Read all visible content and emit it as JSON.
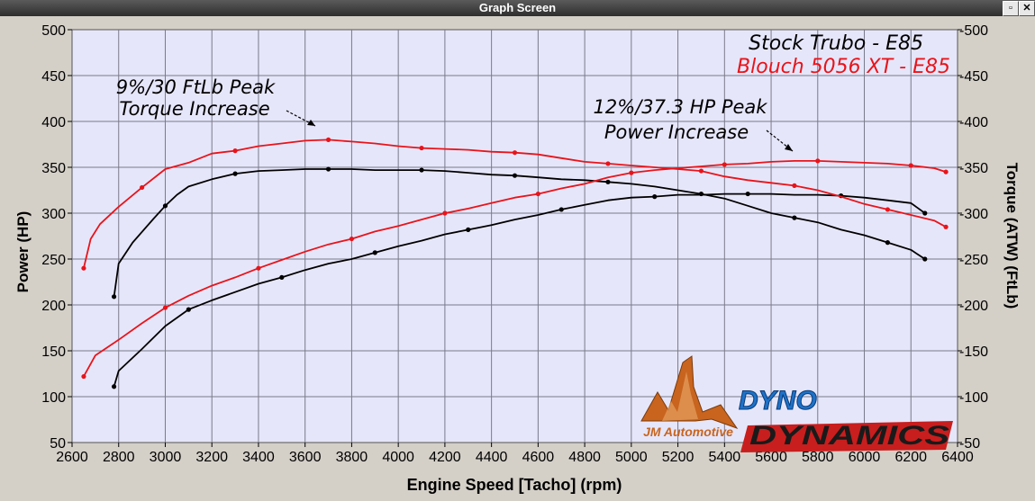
{
  "window": {
    "title": "Graph Screen",
    "restore_icon": "restore-icon",
    "close_icon": "close-icon"
  },
  "colors": {
    "plot_bg": "#e6e6fa",
    "grid": "#7a7a8c",
    "stock": "#000000",
    "upgrade": "#e8141a",
    "dyno_blue": "#1e72c8",
    "jm_orange": "#c8641e"
  },
  "annotations": {
    "torque_line1": "9%/30 FtLb Peak",
    "torque_line2": "Torque Increase",
    "power_line1": "12%/37.3 HP Peak",
    "power_line2": "Power Increase"
  },
  "logos": {
    "jm": "JM Automotive",
    "dyno1": "DYNO",
    "dyno2": "DYNAMICS"
  },
  "chart_data": {
    "type": "line",
    "xlabel": "Engine Speed [Tacho] (rpm)",
    "ylabel_left": "Power (HP)",
    "ylabel_right": "Torque (ATW) (FtLb)",
    "xlim": [
      2600,
      6400
    ],
    "ylim": [
      50,
      500
    ],
    "xticks": [
      2600,
      2800,
      3000,
      3200,
      3400,
      3600,
      3800,
      4000,
      4200,
      4400,
      4600,
      4800,
      5000,
      5200,
      5400,
      5600,
      5800,
      6000,
      6200,
      6400
    ],
    "yticks_left": [
      50,
      100,
      150,
      200,
      250,
      300,
      350,
      400,
      450,
      500
    ],
    "yticks_right": [
      -50,
      -100,
      -150,
      -200,
      -250,
      -300,
      -350,
      -400,
      -450,
      -500
    ],
    "legend": [
      "Stock Trubo - E85",
      "Blouch 5056 XT - E85"
    ],
    "legend_position": "top-right",
    "grid": true,
    "series": [
      {
        "name": "Stock Trubo - E85",
        "kind": "torque",
        "color": "#000000",
        "points": [
          [
            2780,
            209
          ],
          [
            2800,
            245
          ],
          [
            2860,
            268
          ],
          [
            2950,
            294
          ],
          [
            3000,
            308
          ],
          [
            3050,
            320
          ],
          [
            3100,
            329
          ],
          [
            3200,
            337
          ],
          [
            3300,
            343
          ],
          [
            3400,
            346
          ],
          [
            3500,
            347
          ],
          [
            3600,
            348
          ],
          [
            3700,
            348
          ],
          [
            3800,
            348
          ],
          [
            3900,
            347
          ],
          [
            4000,
            347
          ],
          [
            4100,
            347
          ],
          [
            4200,
            346
          ],
          [
            4300,
            344
          ],
          [
            4400,
            342
          ],
          [
            4500,
            341
          ],
          [
            4600,
            339
          ],
          [
            4700,
            337
          ],
          [
            4800,
            336
          ],
          [
            4900,
            334
          ],
          [
            5000,
            332
          ],
          [
            5100,
            329
          ],
          [
            5200,
            325
          ],
          [
            5300,
            321
          ],
          [
            5400,
            316
          ],
          [
            5500,
            308
          ],
          [
            5600,
            300
          ],
          [
            5700,
            295
          ],
          [
            5800,
            290
          ],
          [
            5900,
            282
          ],
          [
            6000,
            276
          ],
          [
            6100,
            268
          ],
          [
            6200,
            260
          ],
          [
            6260,
            250
          ]
        ]
      },
      {
        "name": "Stock Trubo - E85",
        "kind": "power",
        "color": "#000000",
        "points": [
          [
            2780,
            111
          ],
          [
            2800,
            128
          ],
          [
            2900,
            152
          ],
          [
            3000,
            177
          ],
          [
            3100,
            195
          ],
          [
            3200,
            205
          ],
          [
            3300,
            214
          ],
          [
            3400,
            223
          ],
          [
            3500,
            230
          ],
          [
            3600,
            238
          ],
          [
            3700,
            245
          ],
          [
            3800,
            250
          ],
          [
            3900,
            257
          ],
          [
            4000,
            264
          ],
          [
            4100,
            270
          ],
          [
            4200,
            277
          ],
          [
            4300,
            282
          ],
          [
            4400,
            287
          ],
          [
            4500,
            293
          ],
          [
            4600,
            298
          ],
          [
            4700,
            304
          ],
          [
            4800,
            309
          ],
          [
            4900,
            314
          ],
          [
            5000,
            317
          ],
          [
            5100,
            318
          ],
          [
            5200,
            320
          ],
          [
            5300,
            320
          ],
          [
            5400,
            321
          ],
          [
            5500,
            321
          ],
          [
            5600,
            321
          ],
          [
            5700,
            320
          ],
          [
            5800,
            320
          ],
          [
            5900,
            319
          ],
          [
            6000,
            317
          ],
          [
            6100,
            314
          ],
          [
            6200,
            311
          ],
          [
            6260,
            300
          ]
        ]
      },
      {
        "name": "Blouch 5056 XT - E85",
        "kind": "torque",
        "color": "#e8141a",
        "points": [
          [
            2650,
            240
          ],
          [
            2680,
            272
          ],
          [
            2720,
            288
          ],
          [
            2800,
            307
          ],
          [
            2900,
            328
          ],
          [
            3000,
            348
          ],
          [
            3100,
            355
          ],
          [
            3200,
            365
          ],
          [
            3300,
            368
          ],
          [
            3400,
            373
          ],
          [
            3500,
            376
          ],
          [
            3600,
            379
          ],
          [
            3700,
            380
          ],
          [
            3800,
            378
          ],
          [
            3900,
            376
          ],
          [
            4000,
            373
          ],
          [
            4100,
            371
          ],
          [
            4200,
            370
          ],
          [
            4300,
            369
          ],
          [
            4400,
            367
          ],
          [
            4500,
            366
          ],
          [
            4600,
            364
          ],
          [
            4700,
            360
          ],
          [
            4800,
            356
          ],
          [
            4900,
            354
          ],
          [
            5000,
            352
          ],
          [
            5100,
            350
          ],
          [
            5200,
            348
          ],
          [
            5300,
            346
          ],
          [
            5400,
            340
          ],
          [
            5500,
            336
          ],
          [
            5600,
            333
          ],
          [
            5700,
            330
          ],
          [
            5800,
            325
          ],
          [
            5900,
            318
          ],
          [
            6000,
            310
          ],
          [
            6100,
            304
          ],
          [
            6200,
            298
          ],
          [
            6300,
            292
          ],
          [
            6350,
            285
          ]
        ]
      },
      {
        "name": "Blouch 5056 XT - E85",
        "kind": "power",
        "color": "#e8141a",
        "points": [
          [
            2650,
            122
          ],
          [
            2700,
            145
          ],
          [
            2800,
            162
          ],
          [
            2900,
            180
          ],
          [
            3000,
            197
          ],
          [
            3100,
            210
          ],
          [
            3200,
            221
          ],
          [
            3300,
            230
          ],
          [
            3400,
            240
          ],
          [
            3500,
            249
          ],
          [
            3600,
            258
          ],
          [
            3700,
            266
          ],
          [
            3800,
            272
          ],
          [
            3900,
            280
          ],
          [
            4000,
            286
          ],
          [
            4100,
            293
          ],
          [
            4200,
            300
          ],
          [
            4300,
            305
          ],
          [
            4400,
            311
          ],
          [
            4500,
            317
          ],
          [
            4600,
            321
          ],
          [
            4700,
            327
          ],
          [
            4800,
            332
          ],
          [
            4900,
            339
          ],
          [
            5000,
            344
          ],
          [
            5100,
            347
          ],
          [
            5200,
            349
          ],
          [
            5300,
            351
          ],
          [
            5400,
            353
          ],
          [
            5500,
            354
          ],
          [
            5600,
            356
          ],
          [
            5700,
            357
          ],
          [
            5800,
            357
          ],
          [
            5900,
            356
          ],
          [
            6000,
            355
          ],
          [
            6100,
            354
          ],
          [
            6200,
            352
          ],
          [
            6300,
            349
          ],
          [
            6350,
            345
          ]
        ]
      }
    ]
  }
}
